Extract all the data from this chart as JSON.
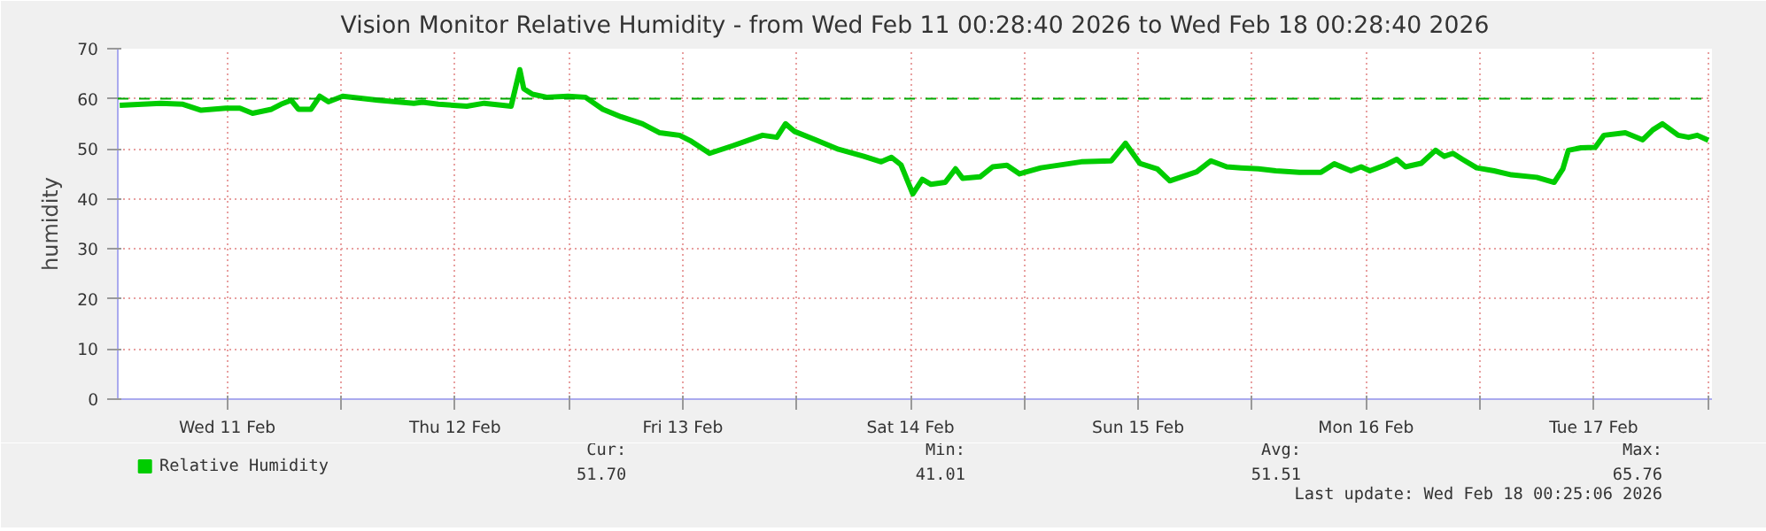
{
  "chart_data": {
    "type": "line",
    "title": "Vision Monitor Relative Humidity - from Wed Feb 11 00:28:40 2026 to Wed Feb 18 00:28:40 2026",
    "ylabel": "humidity",
    "x": [
      "2026-02-11T00:40",
      "2026-02-11T05:00",
      "2026-02-11T07:20",
      "2026-02-11T09:15",
      "2026-02-11T11:50",
      "2026-02-11T13:20",
      "2026-02-11T14:40",
      "2026-02-11T16:40",
      "2026-02-11T17:40",
      "2026-02-11T18:45",
      "2026-02-11T19:30",
      "2026-02-11T20:50",
      "2026-02-11T21:45",
      "2026-02-11T22:40",
      "2026-02-12T00:10",
      "2026-02-12T03:55",
      "2026-02-12T07:40",
      "2026-02-12T08:35",
      "2026-02-12T10:15",
      "2026-02-12T13:15",
      "2026-02-12T15:05",
      "2026-02-12T17:55",
      "2026-02-12T18:50",
      "2026-02-12T19:15",
      "2026-02-12T20:10",
      "2026-02-12T21:40",
      "2026-02-12T23:55",
      "2026-02-13T01:45",
      "2026-02-13T03:35",
      "2026-02-13T05:30",
      "2026-02-13T07:45",
      "2026-02-13T09:35",
      "2026-02-13T11:40",
      "2026-02-13T12:55",
      "2026-02-13T14:50",
      "2026-02-13T17:15",
      "2026-02-13T19:05",
      "2026-02-13T20:25",
      "2026-02-13T21:55",
      "2026-02-13T22:50",
      "2026-02-13T23:45",
      "2026-02-14T02:00",
      "2026-02-14T04:25",
      "2026-02-14T07:05",
      "2026-02-14T08:55",
      "2026-02-14T10:00",
      "2026-02-14T11:00",
      "2026-02-14T12:15",
      "2026-02-14T13:15",
      "2026-02-14T14:10",
      "2026-02-14T15:40",
      "2026-02-14T16:45",
      "2026-02-14T17:30",
      "2026-02-14T19:20",
      "2026-02-14T20:40",
      "2026-02-14T22:10",
      "2026-02-14T23:30",
      "2026-02-15T01:45",
      "2026-02-15T06:00",
      "2026-02-15T09:10",
      "2026-02-15T10:40",
      "2026-02-15T12:10",
      "2026-02-15T14:00",
      "2026-02-15T15:20",
      "2026-02-15T18:10",
      "2026-02-15T19:40",
      "2026-02-15T21:20",
      "2026-02-15T22:50",
      "2026-02-16T00:40",
      "2026-02-16T02:30",
      "2026-02-16T05:00",
      "2026-02-16T07:15",
      "2026-02-16T08:40",
      "2026-02-16T10:25",
      "2026-02-16T11:30",
      "2026-02-16T12:25",
      "2026-02-16T14:05",
      "2026-02-16T15:15",
      "2026-02-16T16:10",
      "2026-02-16T17:50",
      "2026-02-16T19:20",
      "2026-02-16T20:15",
      "2026-02-16T21:10",
      "2026-02-16T22:10",
      "2026-02-16T23:40",
      "2026-02-17T01:30",
      "2026-02-17T03:20",
      "2026-02-17T06:00",
      "2026-02-17T07:50",
      "2026-02-17T08:45",
      "2026-02-17T09:20",
      "2026-02-17T10:40",
      "2026-02-17T12:10",
      "2026-02-17T13:05",
      "2026-02-17T15:20",
      "2026-02-17T17:10",
      "2026-02-17T18:15",
      "2026-02-17T19:15",
      "2026-02-17T20:55",
      "2026-02-17T22:00",
      "2026-02-17T22:55",
      "2026-02-18T00:05"
    ],
    "series": [
      {
        "name": "Relative Humidity",
        "color": "#00cc00",
        "values": [
          58.7,
          59.1,
          58.9,
          57.7,
          58.1,
          58.1,
          57.1,
          57.9,
          58.9,
          59.7,
          57.9,
          57.9,
          60.5,
          59.4,
          60.5,
          59.7,
          59.1,
          59.3,
          58.9,
          58.5,
          59.1,
          58.5,
          65.8,
          62.0,
          60.9,
          60.3,
          60.5,
          60.3,
          57.9,
          56.4,
          55.0,
          53.2,
          52.7,
          51.5,
          49.1,
          50.6,
          51.8,
          52.7,
          52.3,
          55.0,
          53.5,
          51.8,
          49.9,
          48.5,
          47.4,
          48.3,
          46.8,
          41.0,
          43.9,
          42.9,
          43.3,
          46.0,
          44.1,
          44.4,
          46.4,
          46.7,
          45.0,
          46.2,
          47.4,
          47.6,
          51.1,
          47.1,
          46.0,
          43.6,
          45.4,
          47.6,
          46.4,
          46.2,
          46.0,
          45.6,
          45.3,
          45.3,
          47.0,
          45.6,
          46.4,
          45.6,
          46.8,
          47.9,
          46.4,
          47.1,
          49.7,
          48.5,
          49.1,
          47.9,
          46.2,
          45.6,
          44.8,
          44.3,
          43.3,
          46.0,
          49.7,
          50.2,
          50.3,
          52.7,
          53.2,
          51.8,
          53.8,
          55.0,
          52.7,
          52.3,
          52.7,
          51.7
        ]
      }
    ],
    "xlim": [
      "2026-02-11T00:28",
      "2026-02-18T00:28"
    ],
    "xticks": [
      {
        "value": "2026-02-11T12:00",
        "label": "Wed 11 Feb"
      },
      {
        "value": "2026-02-12T00:00",
        "label": null
      },
      {
        "value": "2026-02-12T12:00",
        "label": "Thu 12 Feb"
      },
      {
        "value": "2026-02-13T00:00",
        "label": null
      },
      {
        "value": "2026-02-13T12:00",
        "label": "Fri 13 Feb"
      },
      {
        "value": "2026-02-14T00:00",
        "label": null
      },
      {
        "value": "2026-02-14T12:00",
        "label": "Sat 14 Feb"
      },
      {
        "value": "2026-02-15T00:00",
        "label": null
      },
      {
        "value": "2026-02-15T12:00",
        "label": "Sun 15 Feb"
      },
      {
        "value": "2026-02-16T00:00",
        "label": null
      },
      {
        "value": "2026-02-16T12:00",
        "label": "Mon 16 Feb"
      },
      {
        "value": "2026-02-17T00:00",
        "label": null
      },
      {
        "value": "2026-02-17T12:00",
        "label": "Tue 17 Feb"
      },
      {
        "value": "2026-02-18T00:00",
        "label": null
      }
    ],
    "ylim": [
      0,
      70
    ],
    "yticks": [
      0,
      10,
      20,
      30,
      40,
      50,
      60,
      70
    ],
    "grid": true,
    "legend": "bottom left",
    "ref_lines": [
      {
        "axis": "y",
        "value": 60,
        "label": null,
        "color": "#00aa00",
        "line_style": "dashed"
      }
    ],
    "annotations": [
      "Cur:",
      "51.70",
      "Min:",
      "41.01",
      "Avg:",
      "51.51",
      "Max:",
      "65.76",
      "Last update: Wed Feb 18 00:25:06 2026"
    ]
  }
}
